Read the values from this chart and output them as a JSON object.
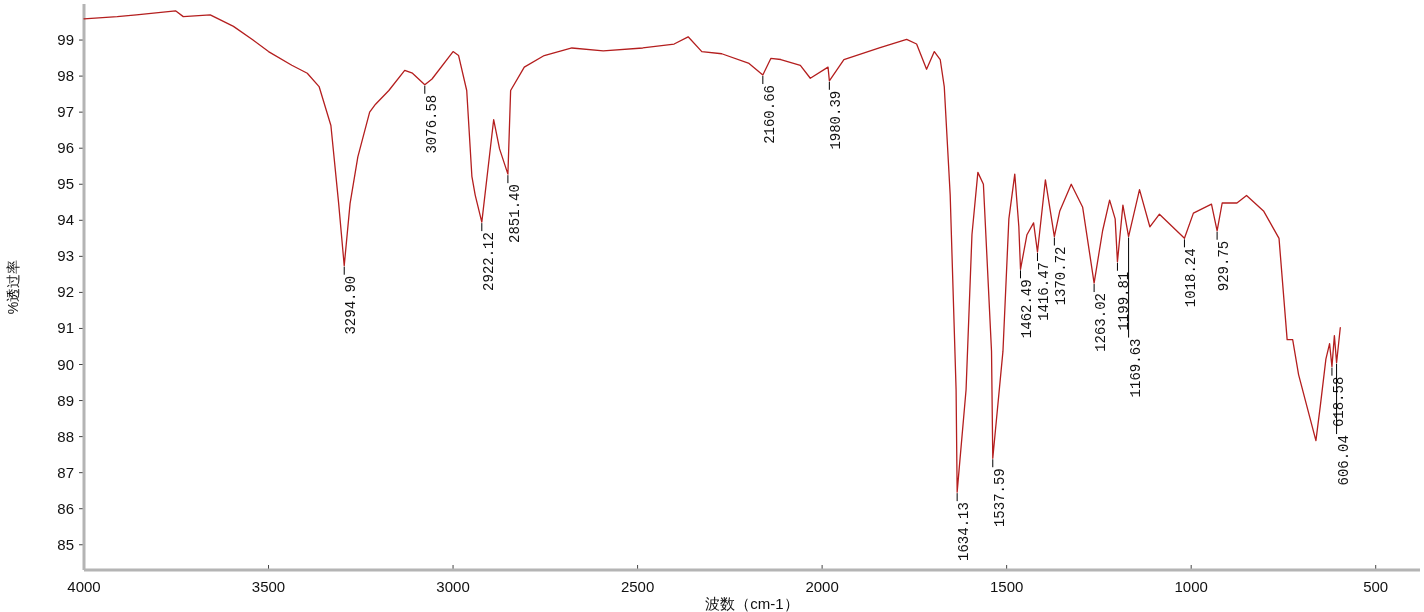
{
  "chart_data": {
    "type": "line",
    "xlabel": "波数（cm-1）",
    "ylabel": "%透过率",
    "xlim": [
      4000,
      380
    ],
    "ylim": [
      84.3,
      100
    ],
    "xticks": [
      4000,
      3500,
      3000,
      2500,
      2000,
      1500,
      1000,
      500
    ],
    "yticks": [
      85,
      86,
      87,
      88,
      89,
      90,
      91,
      92,
      93,
      94,
      95,
      96,
      97,
      98,
      99
    ],
    "series": [
      {
        "color": "#b41e1e",
        "x": [
          4000,
          3910,
          3858,
          3752,
          3731,
          3658,
          3595,
          3542,
          3500,
          3437,
          3395,
          3363,
          3331,
          3310,
          3294.9,
          3279,
          3258,
          3226,
          3210,
          3174,
          3131,
          3110,
          3076.58,
          3057,
          3000,
          2985,
          2963,
          2949,
          2940,
          2922.12,
          2890,
          2874,
          2851.4,
          2844,
          2807,
          2753,
          2678,
          2593,
          2486,
          2401,
          2363,
          2326,
          2272,
          2198,
          2160.66,
          2139,
          2112,
          2059,
          2032,
          1984,
          1980.39,
          1941,
          1845,
          1771,
          1744,
          1717,
          1696,
          1680,
          1669,
          1653,
          1637,
          1634.13,
          1610,
          1594,
          1578,
          1563,
          1541,
          1537.59,
          1510,
          1494,
          1478,
          1467,
          1462.49,
          1445,
          1427,
          1416.47,
          1395,
          1370.72,
          1356,
          1325,
          1294,
          1263.02,
          1240,
          1221,
          1206,
          1199.81,
          1185,
          1169.63,
          1140,
          1112,
          1086,
          1018.24,
          994,
          945,
          929.75,
          916,
          876,
          850,
          804,
          762,
          740,
          725,
          709,
          662,
          650,
          635,
          625,
          618.58,
          612,
          606.04,
          596
        ],
        "values": [
          99.59,
          99.65,
          99.7,
          99.81,
          99.65,
          99.7,
          99.38,
          99.0,
          98.68,
          98.3,
          98.08,
          97.71,
          96.63,
          94.47,
          92.74,
          94.47,
          95.76,
          97.0,
          97.22,
          97.6,
          98.16,
          98.08,
          97.76,
          97.92,
          98.68,
          98.57,
          97.6,
          95.22,
          94.7,
          93.95,
          96.79,
          95.98,
          95.28,
          97.6,
          98.25,
          98.57,
          98.78,
          98.7,
          98.78,
          98.89,
          99.09,
          98.68,
          98.62,
          98.35,
          98.03,
          98.49,
          98.46,
          98.3,
          97.94,
          98.25,
          97.87,
          98.46,
          98.78,
          99.02,
          98.89,
          98.19,
          98.68,
          98.46,
          97.7,
          94.7,
          89.3,
          86.46,
          89.3,
          93.6,
          95.33,
          95.0,
          90.37,
          87.4,
          90.37,
          94.04,
          95.28,
          93.83,
          92.64,
          93.6,
          93.93,
          93.12,
          95.12,
          93.55,
          94.26,
          95.0,
          94.36,
          92.26,
          93.71,
          94.56,
          94.04,
          92.85,
          94.42,
          93.55,
          94.85,
          93.82,
          94.17,
          93.5,
          94.2,
          94.45,
          93.71,
          94.48,
          94.48,
          94.69,
          94.26,
          93.5,
          90.69,
          90.69,
          89.72,
          87.89,
          88.86,
          90.15,
          90.58,
          89.94,
          90.8,
          90.05,
          91.02
        ]
      }
    ],
    "annotations": [
      {
        "text": "3294.90",
        "x": 3294.9,
        "y": 92.74
      },
      {
        "text": "3076.58",
        "x": 3076.58,
        "y": 97.76
      },
      {
        "text": "2922.12",
        "x": 2922.12,
        "y": 93.95
      },
      {
        "text": "2851.40",
        "x": 2851.4,
        "y": 95.28
      },
      {
        "text": "2160.66",
        "x": 2160.66,
        "y": 98.03
      },
      {
        "text": "1980.39",
        "x": 1980.39,
        "y": 97.87
      },
      {
        "text": "1634.13",
        "x": 1634.13,
        "y": 86.46
      },
      {
        "text": "1537.59",
        "x": 1537.59,
        "y": 87.4
      },
      {
        "text": "1462.49",
        "x": 1462.49,
        "y": 92.64
      },
      {
        "text": "1416.47",
        "x": 1416.47,
        "y": 93.12
      },
      {
        "text": "1370.72",
        "x": 1370.72,
        "y": 93.55
      },
      {
        "text": "1263.02",
        "x": 1263.02,
        "y": 92.26
      },
      {
        "text": "1199.81",
        "x": 1199.81,
        "y": 92.85
      },
      {
        "text": "1169.63",
        "x": 1169.63,
        "y": 93.55
      },
      {
        "text": "1018.24",
        "x": 1018.24,
        "y": 93.5
      },
      {
        "text": "929.75",
        "x": 929.75,
        "y": 93.71
      },
      {
        "text": "618.58",
        "x": 618.58,
        "y": 89.94
      },
      {
        "text": "606.04",
        "x": 606.04,
        "y": 90.05
      }
    ]
  }
}
